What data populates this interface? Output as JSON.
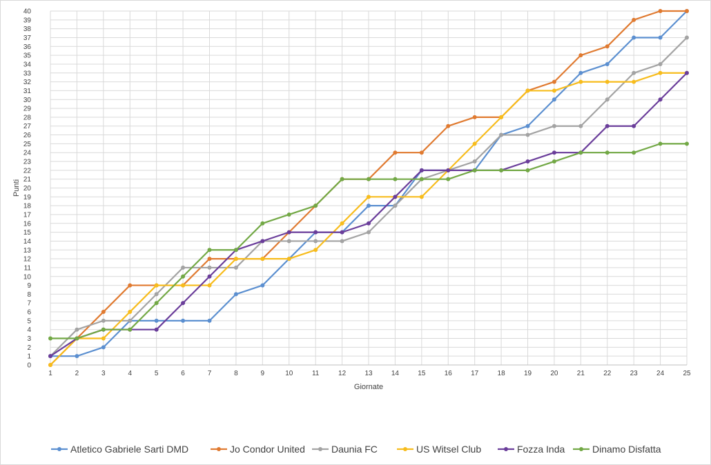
{
  "chart_data": {
    "type": "line",
    "xlabel": "Giornate",
    "ylabel": "Punti",
    "x": [
      1,
      2,
      3,
      4,
      5,
      6,
      7,
      8,
      9,
      10,
      11,
      12,
      13,
      14,
      15,
      16,
      17,
      18,
      19,
      20,
      21,
      22,
      23,
      24,
      25
    ],
    "xlim": [
      1,
      25
    ],
    "ylim": [
      0,
      40
    ],
    "grid": true,
    "legend_position": "bottom",
    "series": [
      {
        "name": "Atletico Gabriele Sarti DMD",
        "color": "#5b8fd0",
        "values": [
          1,
          1,
          2,
          5,
          5,
          5,
          5,
          8,
          9,
          12,
          15,
          15,
          18,
          18,
          22,
          22,
          22,
          26,
          27,
          30,
          33,
          34,
          37,
          37,
          40
        ]
      },
      {
        "name": "Jo Condor United",
        "color": "#e07a30",
        "values": [
          0,
          3,
          6,
          9,
          9,
          9,
          12,
          12,
          12,
          15,
          18,
          21,
          21,
          24,
          24,
          27,
          28,
          28,
          31,
          32,
          35,
          36,
          39,
          40,
          40
        ]
      },
      {
        "name": "Daunia FC",
        "color": "#a3a3a3",
        "values": [
          1,
          4,
          5,
          5,
          8,
          11,
          11,
          11,
          14,
          14,
          14,
          14,
          15,
          18,
          21,
          22,
          23,
          26,
          26,
          27,
          27,
          30,
          33,
          34,
          37
        ]
      },
      {
        "name": "US Witsel Club",
        "color": "#f7bc1c",
        "values": [
          0,
          3,
          3,
          6,
          9,
          9,
          9,
          12,
          12,
          12,
          13,
          16,
          19,
          19,
          19,
          22,
          25,
          28,
          31,
          31,
          32,
          32,
          32,
          33,
          33
        ]
      },
      {
        "name": "Fozza Inda",
        "color": "#6a3d9a",
        "values": [
          1,
          3,
          4,
          4,
          4,
          7,
          10,
          13,
          14,
          15,
          15,
          15,
          16,
          19,
          22,
          22,
          22,
          22,
          23,
          24,
          24,
          27,
          27,
          30,
          33
        ]
      },
      {
        "name": "Dinamo Disfatta",
        "color": "#72a845",
        "values": [
          3,
          3,
          4,
          4,
          7,
          10,
          13,
          13,
          16,
          17,
          18,
          21,
          21,
          21,
          21,
          21,
          22,
          22,
          22,
          23,
          24,
          24,
          24,
          25,
          25
        ]
      }
    ]
  }
}
